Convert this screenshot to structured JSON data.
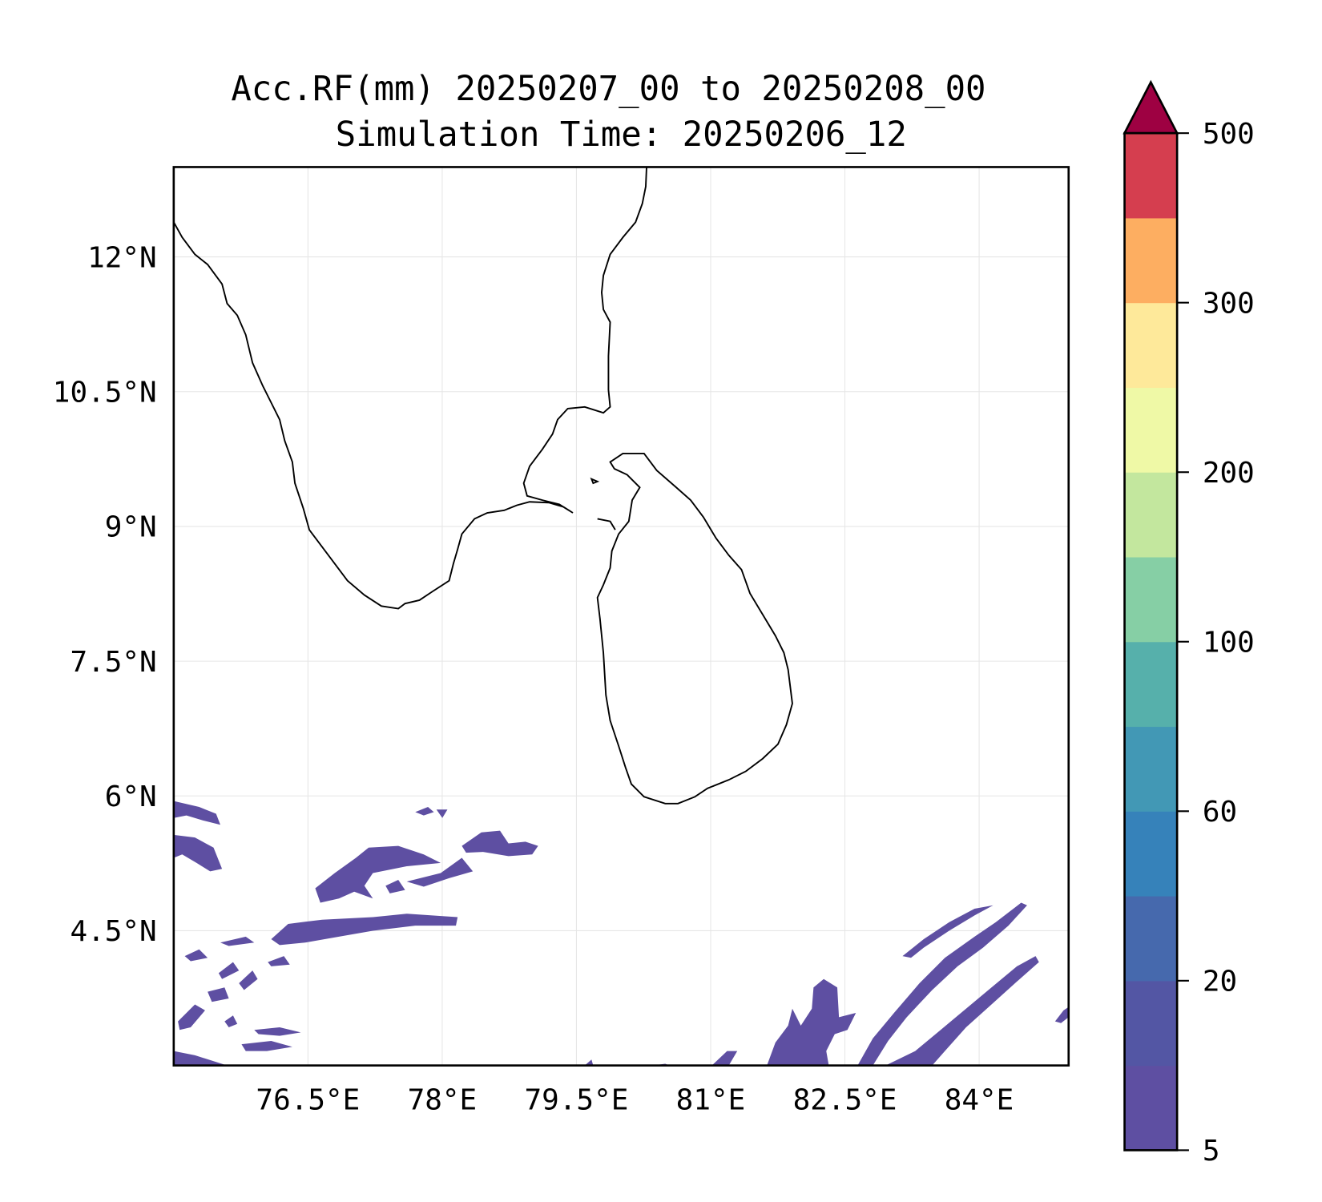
{
  "chart_data": {
    "type": "heatmap",
    "title_line1": "Acc.RF(mm) 20250207_00 to 20250208_00",
    "title_line2": "Simulation Time: 20250206_12",
    "extent": {
      "lon": [
        75,
        85
      ],
      "lat": [
        3,
        13
      ]
    },
    "x_ticks": [
      76.5,
      78,
      79.5,
      81,
      82.5,
      84
    ],
    "x_tick_labels": [
      "76.5°E",
      "78°E",
      "79.5°E",
      "81°E",
      "82.5°E",
      "84°E"
    ],
    "y_ticks": [
      4.5,
      6,
      7.5,
      9,
      10.5,
      12
    ],
    "y_tick_labels": [
      "4.5°N",
      "6°N",
      "7.5°N",
      "9°N",
      "10.5°N",
      "12°N"
    ],
    "grid": true,
    "colorbar": {
      "levels": [
        5,
        10,
        20,
        40,
        60,
        80,
        100,
        150,
        200,
        250,
        300,
        400,
        500
      ],
      "tick_values": [
        5,
        20,
        60,
        100,
        200,
        300,
        500
      ],
      "tick_labels": [
        "5",
        "20",
        "60",
        "100",
        "200",
        "300",
        "500"
      ],
      "colors": [
        "#5e4fa2",
        "#5356a4",
        "#4669ad",
        "#3682ba",
        "#4298b5",
        "#56b0ab",
        "#86cfa5",
        "#c3e79e",
        "#eff9a6",
        "#fee99a",
        "#fdae61",
        "#d53e4f"
      ],
      "extend_color": "#9e0142",
      "extend": "max",
      "placement": "right"
    },
    "field_note": "rainfall 5-20 mm patches over the ocean south of Sri Lanka"
  }
}
